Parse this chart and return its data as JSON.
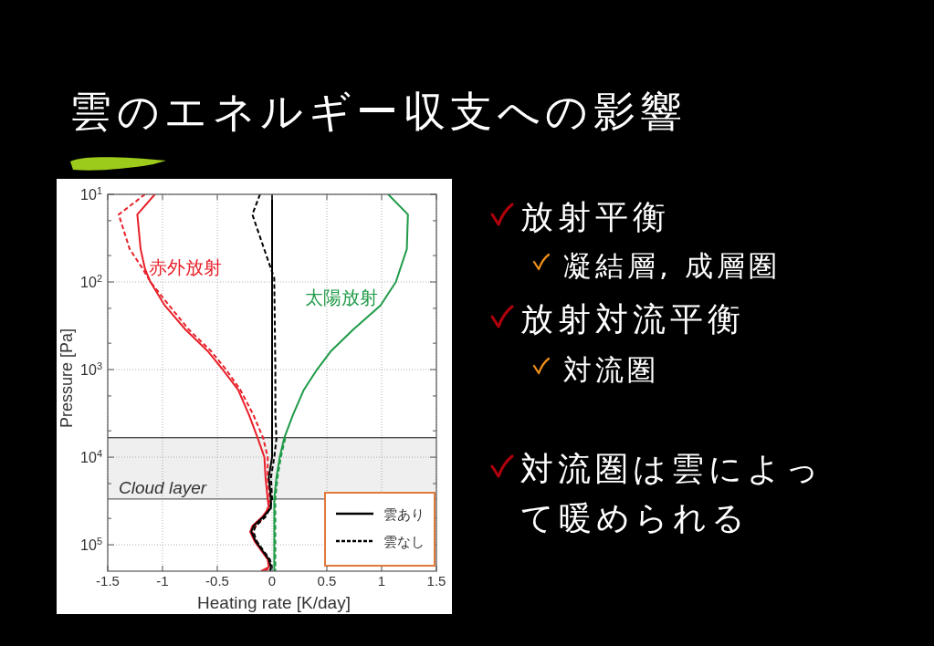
{
  "chart_data": {
    "type": "line",
    "title": "雲のエネルギー収支への影響",
    "xlabel": "Heating rate [K/day]",
    "ylabel": "Pressure [Pa]",
    "xlim": [
      -1.5,
      1.5
    ],
    "xticks": [
      -1.5,
      -1,
      -0.5,
      0,
      0.5,
      1,
      1.5
    ],
    "ylim": [
      200000,
      10
    ],
    "yticks": [
      {
        "value": 10,
        "label": "10$^{1}$"
      },
      {
        "value": 20,
        "label": null
      },
      {
        "value": 50,
        "label": null
      },
      {
        "value": 100,
        "label": "10$^{2}$"
      },
      {
        "value": 200,
        "label": null
      },
      {
        "value": 500,
        "label": null
      },
      {
        "value": 1000,
        "label": "10$^{3}$"
      },
      {
        "value": 2000,
        "label": null
      },
      {
        "value": 5000,
        "label": null
      },
      {
        "value": 10000,
        "label": "10$^{4}$"
      },
      {
        "value": 20000,
        "label": null
      },
      {
        "value": 50000,
        "label": null
      },
      {
        "value": 100000,
        "label": "10$^{5}$"
      }
    ],
    "log": "y",
    "grid": true,
    "legend": "bottom right",
    "bands": [
      {
        "axis": "y",
        "from": 6000,
        "to": 30000,
        "label": "Cloud layer",
        "color": "#efefef"
      }
    ],
    "ref_lines": [
      {
        "axis": "y",
        "value": 6000,
        "color": "#111111"
      },
      {
        "axis": "y",
        "value": 30000,
        "color": "#666666"
      }
    ],
    "annotations": [
      "赤外放射",
      "太陽放射",
      "放射平衡",
      "凝結層, 成層圏",
      "放射対流平衡",
      "対流圏",
      "対流圏は雲によって暖められる"
    ],
    "series": [
      {
        "color": "#e8202a",
        "line_style": "solid",
        "x": [
          -1.07,
          -1.23,
          -1.2,
          -1.16,
          -1.11,
          -0.98,
          -0.79,
          -0.59,
          -0.45,
          -0.31,
          -0.21,
          -0.13,
          -0.07,
          -0.06,
          -0.04,
          -0.03,
          -0.09,
          -0.18,
          -0.2,
          -0.16,
          -0.1,
          -0.04,
          -0.03,
          -0.1
        ],
        "values": [
          10,
          17,
          42,
          71,
          100,
          185,
          350,
          610,
          1000,
          1700,
          3300,
          6100,
          10000,
          17000,
          30000,
          38000,
          48000,
          61000,
          71000,
          91000,
          116000,
          147000,
          180000,
          200000
        ]
      },
      {
        "color": "#e8202a",
        "line_style": "dashed",
        "x": [
          -1.16,
          -1.4,
          -1.3,
          -1.18,
          -1.11,
          -0.94,
          -0.76,
          -0.56,
          -0.42,
          -0.29,
          -0.17,
          -0.08,
          -0.04,
          -0.04,
          -0.02,
          -0.04,
          -0.07,
          -0.15,
          -0.18,
          -0.15,
          -0.09,
          -0.03,
          -0.01,
          -0.07
        ],
        "values": [
          10,
          17,
          42,
          71,
          100,
          185,
          350,
          610,
          1000,
          1700,
          3300,
          6100,
          10000,
          17000,
          30000,
          38000,
          48000,
          61000,
          71000,
          91000,
          116000,
          147000,
          180000,
          200000
        ]
      },
      {
        "color": "#1f9a48",
        "line_style": "solid",
        "x": [
          1.06,
          1.24,
          1.23,
          1.13,
          0.99,
          0.74,
          0.54,
          0.41,
          0.29,
          0.19,
          0.11,
          0.07,
          0.04,
          0.02,
          0.02,
          0.02
        ],
        "values": [
          10,
          17,
          42,
          100,
          185,
          350,
          610,
          1000,
          1700,
          3300,
          6100,
          10000,
          17000,
          30000,
          61000,
          200000
        ]
      },
      {
        "color": "#1f9a48",
        "line_style": "dashed",
        "x": [
          0.12,
          0.08,
          0.05,
          0.03,
          0.03,
          0.03
        ],
        "values": [
          6100,
          10000,
          17000,
          30000,
          61000,
          200000
        ]
      },
      {
        "name": "雲あり",
        "color": "#000000",
        "line_style": "solid",
        "x": [
          0,
          0,
          0,
          -0.03,
          -0.01,
          -0.01,
          -0.08,
          -0.17,
          -0.19,
          -0.15,
          -0.09,
          -0.03,
          -0.01,
          -0.02
        ],
        "values": [
          10,
          1000,
          10000,
          17000,
          30000,
          38000,
          48000,
          61000,
          71000,
          91000,
          116000,
          147000,
          180000,
          200000
        ]
      },
      {
        "name": "雲なし",
        "color": "#000000",
        "line_style": "dashed",
        "x": [
          -0.11,
          -0.18,
          -0.01,
          0.02,
          0.02,
          0.03,
          0.03,
          0.04,
          0.02,
          -0.01,
          0,
          -0.02,
          -0.06,
          -0.15,
          -0.17,
          -0.14,
          -0.08,
          -0.02,
          0,
          -0.02
        ],
        "values": [
          10,
          17,
          71,
          90,
          100,
          1000,
          3300,
          6100,
          10000,
          17000,
          30000,
          38000,
          48000,
          61000,
          71000,
          91000,
          116000,
          147000,
          180000,
          200000
        ]
      }
    ]
  }
}
